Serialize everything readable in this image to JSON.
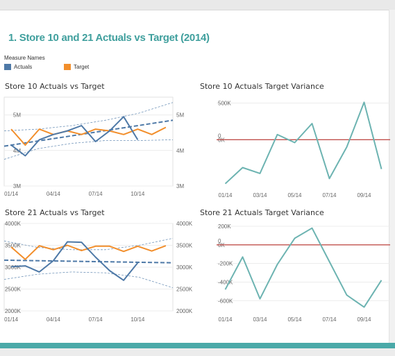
{
  "page_title": "1. Store 10 and 21 Actuals vs Target (2014)",
  "legend": {
    "title": "Measure Names",
    "items": [
      {
        "label": "Actuals",
        "color": "#4e79a7"
      },
      {
        "label": "Target",
        "color": "#f28e2b"
      }
    ]
  },
  "chart_data": [
    {
      "type": "line",
      "title": "Store 10 Actuals vs Target",
      "y_unit": "millions",
      "ylim": [
        3.0,
        5.5
      ],
      "yticks": [
        3,
        4,
        5
      ],
      "ytick_labels": [
        "3M",
        "4M",
        "5M"
      ],
      "x_tick_labels": [
        "01/14",
        "04/14",
        "07/14",
        "10/14"
      ],
      "x_tick_index": [
        0,
        3,
        6,
        9
      ],
      "x_count": 12,
      "dual_axis": true,
      "series": [
        {
          "name": "Actuals",
          "color": "#4e79a7",
          "values": [
            4.15,
            3.85,
            4.3,
            4.45,
            4.55,
            4.7,
            4.25,
            4.55,
            4.95,
            4.3,
            null,
            null
          ]
        },
        {
          "name": "Target",
          "color": "#f28e2b",
          "values": [
            4.6,
            4.15,
            4.6,
            4.45,
            4.55,
            4.45,
            4.6,
            4.55,
            4.45,
            4.6,
            4.45,
            4.65
          ]
        }
      ],
      "trend": {
        "color": "#4e79a7",
        "start": 4.12,
        "end": 4.85
      },
      "bands": {
        "color": "#4e79a7",
        "upper": [
          4.55,
          4.6,
          4.7,
          4.85,
          5.05,
          5.35
        ],
        "lower": [
          3.75,
          4.05,
          4.2,
          4.28,
          4.28,
          4.3
        ]
      }
    },
    {
      "type": "line",
      "title": "Store 10 Actuals Target Variance",
      "ylim": [
        -650,
        580
      ],
      "yticks": [
        0,
        500
      ],
      "ytick_labels": [
        "0K",
        "500K"
      ],
      "x_tick_labels": [
        "01/14",
        "03/14",
        "05/14",
        "07/14",
        "09/14"
      ],
      "x_tick_index": [
        0,
        2,
        4,
        6,
        8
      ],
      "x_count": 10,
      "reference_line": {
        "value": 0,
        "label": "0",
        "color": "#c0504d"
      },
      "series": [
        {
          "name": "",
          "color": "#6cb3b1",
          "values": [
            -600,
            -380,
            -460,
            70,
            -40,
            220,
            -530,
            -100,
            510,
            -400
          ]
        }
      ]
    },
    {
      "type": "line",
      "title": "Store 21 Actuals vs Target",
      "y_unit": "thousands",
      "ylim": [
        2000,
        4000
      ],
      "yticks": [
        2000,
        2500,
        3000,
        3500,
        4000
      ],
      "ytick_labels": [
        "2000K",
        "2500K",
        "3000K",
        "3500K",
        "4000K"
      ],
      "x_tick_labels": [
        "01/14",
        "04/14",
        "07/14",
        "10/14"
      ],
      "x_tick_index": [
        0,
        3,
        6,
        9
      ],
      "x_count": 12,
      "dual_axis": true,
      "series": [
        {
          "name": "Actuals",
          "color": "#4e79a7",
          "values": [
            3010,
            3030,
            2890,
            3150,
            3580,
            3570,
            3230,
            2920,
            2700,
            3100,
            null,
            null
          ]
        },
        {
          "name": "Target",
          "color": "#f28e2b",
          "values": [
            3460,
            3180,
            3490,
            3400,
            3500,
            3380,
            3480,
            3480,
            3360,
            3480,
            3370,
            3490
          ]
        }
      ],
      "trend": {
        "color": "#4e79a7",
        "start": 3160,
        "end": 3100
      },
      "bands": {
        "color": "#4e79a7",
        "upper": [
          3600,
          3450,
          3400,
          3400,
          3500,
          3660
        ],
        "lower": [
          2720,
          2840,
          2890,
          2870,
          2770,
          2530
        ]
      }
    },
    {
      "type": "line",
      "title": "Store 21 Actuals Target Variance",
      "ylim": [
        -710,
        230
      ],
      "yticks": [
        -600,
        -400,
        -200,
        0,
        200
      ],
      "ytick_labels": [
        "-600K",
        "-400K",
        "-200K",
        "0K",
        "200K"
      ],
      "x_tick_labels": [
        "01/14",
        "03/14",
        "05/14",
        "07/14",
        "09/14"
      ],
      "x_tick_index": [
        0,
        2,
        4,
        6,
        8
      ],
      "x_count": 10,
      "reference_line": {
        "value": 0,
        "label": "0",
        "color": "#c0504d"
      },
      "series": [
        {
          "name": "",
          "color": "#6cb3b1",
          "values": [
            -480,
            -130,
            -580,
            -210,
            70,
            180,
            -180,
            -540,
            -670,
            -380
          ]
        }
      ]
    }
  ]
}
